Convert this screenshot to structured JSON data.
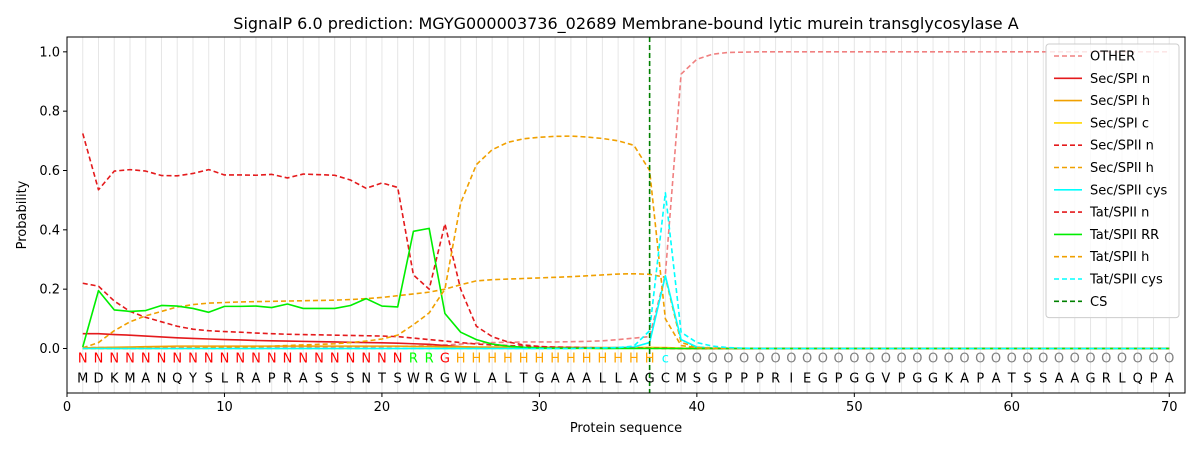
{
  "chart_data": {
    "type": "line",
    "title": "SignalP 6.0 prediction: MGYG000003736_02689 Membrane-bound lytic murein transglycosylase A",
    "xlabel": "Protein sequence",
    "ylabel": "Probability",
    "xlim": [
      0,
      71
    ],
    "ylim": [
      -0.15,
      1.05
    ],
    "xticks": [
      0,
      10,
      20,
      30,
      40,
      50,
      60,
      70
    ],
    "yticks": [
      0.0,
      0.2,
      0.4,
      0.6,
      0.8,
      1.0
    ],
    "grid": "vertical lines at each residue position",
    "legend_position": "top-right",
    "cleavage_site": 37,
    "sequence": [
      "M",
      "D",
      "K",
      "M",
      "A",
      "N",
      "Q",
      "Y",
      "S",
      "L",
      "R",
      "A",
      "P",
      "R",
      "A",
      "S",
      "S",
      "S",
      "N",
      "T",
      "S",
      "W",
      "R",
      "G",
      "W",
      "L",
      "A",
      "L",
      "T",
      "G",
      "A",
      "A",
      "A",
      "L",
      "L",
      "A",
      "G",
      "C",
      "M",
      "S",
      "G",
      "P",
      "P",
      "P",
      "R",
      "I",
      "E",
      "G",
      "P",
      "G",
      "G",
      "V",
      "P",
      "G",
      "G",
      "K",
      "A",
      "P",
      "A",
      "T",
      "S",
      "S",
      "A",
      "A",
      "G",
      "R",
      "L",
      "Q",
      "P",
      "A"
    ],
    "region_labels": [
      "N",
      "N",
      "N",
      "N",
      "N",
      "N",
      "N",
      "N",
      "N",
      "N",
      "N",
      "N",
      "N",
      "N",
      "N",
      "N",
      "N",
      "N",
      "N",
      "N",
      "N",
      "R",
      "R",
      "G",
      "H",
      "H",
      "H",
      "H",
      "H",
      "H",
      "H",
      "H",
      "H",
      "H",
      "H",
      "H",
      "H",
      "C",
      "O",
      "O",
      "O",
      "O",
      "O",
      "O",
      "O",
      "O",
      "O",
      "O",
      "O",
      "O",
      "O",
      "O",
      "O",
      "O",
      "O",
      "O",
      "O",
      "O",
      "O",
      "O",
      "O",
      "O",
      "O",
      "O",
      "O",
      "O",
      "O",
      "O",
      "O",
      "O"
    ],
    "region_colors": {
      "N": "#ff0000",
      "R": "#00ff00",
      "G": "#ff0000",
      "H": "#ffa500",
      "C": "#00ffff",
      "O": "#808080"
    },
    "series": [
      {
        "name": "OTHER",
        "color": "#f08080",
        "dash": true,
        "values": [
          0.003,
          0.003,
          0.003,
          0.003,
          0.003,
          0.003,
          0.003,
          0.003,
          0.003,
          0.003,
          0.003,
          0.003,
          0.003,
          0.004,
          0.004,
          0.004,
          0.005,
          0.005,
          0.005,
          0.006,
          0.007,
          0.008,
          0.01,
          0.012,
          0.015,
          0.018,
          0.02,
          0.021,
          0.022,
          0.022,
          0.022,
          0.023,
          0.024,
          0.026,
          0.03,
          0.035,
          0.04,
          0.25,
          0.925,
          0.975,
          0.992,
          0.998,
          0.999,
          1.0,
          1.0,
          1.0,
          1.0,
          1.0,
          1.0,
          1.0,
          1.0,
          1.0,
          1.0,
          1.0,
          1.0,
          1.0,
          1.0,
          1.0,
          1.0,
          1.0,
          1.0,
          1.0,
          1.0,
          1.0,
          1.0,
          1.0,
          1.0,
          1.0,
          1.0,
          1.0
        ]
      },
      {
        "name": "Sec/SPI n",
        "color": "#e41a1c",
        "dash": false,
        "values": [
          0.05,
          0.05,
          0.047,
          0.045,
          0.042,
          0.039,
          0.036,
          0.034,
          0.032,
          0.03,
          0.029,
          0.027,
          0.026,
          0.025,
          0.024,
          0.023,
          0.022,
          0.021,
          0.02,
          0.019,
          0.018,
          0.016,
          0.014,
          0.01,
          0.006,
          0.003,
          0.002,
          0.001,
          0.001,
          0.001,
          0.001,
          0.001,
          0.001,
          0.001,
          0.001,
          0.001,
          0.001,
          0.001,
          0.0,
          0.0,
          0.0,
          0.0,
          0.0,
          0.0,
          0.0,
          0.0,
          0.0,
          0.0,
          0.0,
          0.0,
          0.0,
          0.0,
          0.0,
          0.0,
          0.0,
          0.0,
          0.0,
          0.0,
          0.0,
          0.0,
          0.0,
          0.0,
          0.0,
          0.0,
          0.0,
          0.0,
          0.0,
          0.0,
          0.0,
          0.0
        ]
      },
      {
        "name": "Sec/SPI h",
        "color": "#f0a000",
        "dash": false,
        "values": [
          0.002,
          0.003,
          0.004,
          0.005,
          0.006,
          0.007,
          0.008,
          0.008,
          0.008,
          0.008,
          0.008,
          0.008,
          0.008,
          0.008,
          0.008,
          0.008,
          0.008,
          0.008,
          0.008,
          0.008,
          0.008,
          0.007,
          0.007,
          0.006,
          0.006,
          0.005,
          0.005,
          0.005,
          0.004,
          0.004,
          0.004,
          0.004,
          0.003,
          0.003,
          0.003,
          0.003,
          0.003,
          0.002,
          0.0,
          0.0,
          0.0,
          0.0,
          0.0,
          0.0,
          0.0,
          0.0,
          0.0,
          0.0,
          0.0,
          0.0,
          0.0,
          0.0,
          0.0,
          0.0,
          0.0,
          0.0,
          0.0,
          0.0,
          0.0,
          0.0,
          0.0,
          0.0,
          0.0,
          0.0,
          0.0,
          0.0,
          0.0,
          0.0,
          0.0,
          0.0
        ]
      },
      {
        "name": "Sec/SPI c",
        "color": "#ffd700",
        "dash": false,
        "values": [
          0.0,
          0.0,
          0.0,
          0.0,
          0.0,
          0.0,
          0.0,
          0.0,
          0.0,
          0.0,
          0.0,
          0.0,
          0.0,
          0.0,
          0.0,
          0.0,
          0.0,
          0.0,
          0.0,
          0.0,
          0.0,
          0.0,
          0.0,
          0.0,
          0.0,
          0.0,
          0.0,
          0.0,
          0.0,
          0.0,
          0.0,
          0.0,
          0.0,
          0.0,
          0.001,
          0.002,
          0.003,
          0.003,
          0.001,
          0.0,
          0.0,
          0.0,
          0.0,
          0.0,
          0.0,
          0.0,
          0.0,
          0.0,
          0.0,
          0.0,
          0.0,
          0.0,
          0.0,
          0.0,
          0.0,
          0.0,
          0.0,
          0.0,
          0.0,
          0.0,
          0.0,
          0.0,
          0.0,
          0.0,
          0.0,
          0.0,
          0.0,
          0.0,
          0.0,
          0.0
        ]
      },
      {
        "name": "Sec/SPII n",
        "color": "#e41a1c",
        "dash": true,
        "values": [
          0.22,
          0.21,
          0.16,
          0.125,
          0.105,
          0.09,
          0.075,
          0.065,
          0.06,
          0.057,
          0.055,
          0.052,
          0.05,
          0.048,
          0.047,
          0.046,
          0.045,
          0.044,
          0.043,
          0.042,
          0.04,
          0.035,
          0.03,
          0.025,
          0.02,
          0.015,
          0.012,
          0.01,
          0.008,
          0.006,
          0.005,
          0.004,
          0.003,
          0.002,
          0.002,
          0.001,
          0.001,
          0.001,
          0.0,
          0.0,
          0.0,
          0.0,
          0.0,
          0.0,
          0.0,
          0.0,
          0.0,
          0.0,
          0.0,
          0.0,
          0.0,
          0.0,
          0.0,
          0.0,
          0.0,
          0.0,
          0.0,
          0.0,
          0.0,
          0.0,
          0.0,
          0.0,
          0.0,
          0.0,
          0.0,
          0.0,
          0.0,
          0.0,
          0.0,
          0.0
        ]
      },
      {
        "name": "Sec/SPII h",
        "color": "#f0a000",
        "dash": true,
        "values": [
          0.002,
          0.02,
          0.06,
          0.09,
          0.11,
          0.125,
          0.14,
          0.148,
          0.153,
          0.155,
          0.157,
          0.158,
          0.159,
          0.16,
          0.161,
          0.162,
          0.163,
          0.165,
          0.168,
          0.172,
          0.178,
          0.184,
          0.19,
          0.2,
          0.215,
          0.228,
          0.232,
          0.234,
          0.236,
          0.238,
          0.24,
          0.242,
          0.245,
          0.248,
          0.251,
          0.252,
          0.25,
          0.24,
          0.02,
          0.005,
          0.002,
          0.001,
          0.0,
          0.0,
          0.0,
          0.0,
          0.0,
          0.0,
          0.0,
          0.0,
          0.0,
          0.0,
          0.0,
          0.0,
          0.0,
          0.0,
          0.0,
          0.0,
          0.0,
          0.0,
          0.0,
          0.0,
          0.0,
          0.0,
          0.0,
          0.0,
          0.0,
          0.0,
          0.0,
          0.0
        ]
      },
      {
        "name": "Sec/SPII cys",
        "color": "#00ffff",
        "dash": false,
        "values": [
          0.0,
          0.0,
          0.0,
          0.0,
          0.0,
          0.0,
          0.0,
          0.0,
          0.0,
          0.0,
          0.0,
          0.0,
          0.0,
          0.0,
          0.0,
          0.0,
          0.0,
          0.0,
          0.0,
          0.0,
          0.0,
          0.0,
          0.0,
          0.0,
          0.0,
          0.0,
          0.0,
          0.0,
          0.0,
          0.0,
          0.0,
          0.0,
          0.001,
          0.002,
          0.003,
          0.005,
          0.02,
          0.245,
          0.03,
          0.005,
          0.001,
          0.0,
          0.0,
          0.0,
          0.0,
          0.0,
          0.0,
          0.0,
          0.0,
          0.0,
          0.0,
          0.0,
          0.0,
          0.0,
          0.0,
          0.0,
          0.0,
          0.0,
          0.0,
          0.0,
          0.0,
          0.0,
          0.0,
          0.0,
          0.0,
          0.0,
          0.0,
          0.0,
          0.0,
          0.0
        ]
      },
      {
        "name": "Tat/SPII n",
        "color": "#e41a1c",
        "dash": true,
        "values": [
          0.725,
          0.535,
          0.598,
          0.603,
          0.598,
          0.583,
          0.582,
          0.59,
          0.603,
          0.585,
          0.585,
          0.584,
          0.587,
          0.575,
          0.588,
          0.586,
          0.584,
          0.568,
          0.54,
          0.558,
          0.543,
          0.248,
          0.2,
          0.42,
          0.2,
          0.075,
          0.04,
          0.022,
          0.012,
          0.007,
          0.004,
          0.003,
          0.002,
          0.001,
          0.001,
          0.001,
          0.001,
          0.0,
          0.0,
          0.0,
          0.0,
          0.0,
          0.0,
          0.0,
          0.0,
          0.0,
          0.0,
          0.0,
          0.0,
          0.0,
          0.0,
          0.0,
          0.0,
          0.0,
          0.0,
          0.0,
          0.0,
          0.0,
          0.0,
          0.0,
          0.0,
          0.0,
          0.0,
          0.0,
          0.0,
          0.0,
          0.0,
          0.0,
          0.0,
          0.0
        ]
      },
      {
        "name": "Tat/SPII RR",
        "color": "#00ee00",
        "dash": false,
        "values": [
          0.005,
          0.195,
          0.13,
          0.125,
          0.128,
          0.145,
          0.143,
          0.135,
          0.122,
          0.142,
          0.142,
          0.143,
          0.138,
          0.15,
          0.135,
          0.135,
          0.135,
          0.145,
          0.168,
          0.143,
          0.14,
          0.395,
          0.405,
          0.118,
          0.055,
          0.03,
          0.015,
          0.008,
          0.004,
          0.002,
          0.001,
          0.001,
          0.001,
          0.0,
          0.0,
          0.0,
          0.0,
          0.0,
          0.0,
          0.0,
          0.0,
          0.0,
          0.0,
          0.0,
          0.0,
          0.0,
          0.0,
          0.0,
          0.0,
          0.0,
          0.0,
          0.0,
          0.0,
          0.0,
          0.0,
          0.0,
          0.0,
          0.0,
          0.0,
          0.0,
          0.0,
          0.0,
          0.0,
          0.0,
          0.0,
          0.0,
          0.0,
          0.0,
          0.0,
          0.0
        ]
      },
      {
        "name": "Tat/SPII h",
        "color": "#f0a000",
        "dash": true,
        "values": [
          0.0,
          0.0,
          0.0,
          0.0,
          0.0,
          0.001,
          0.001,
          0.002,
          0.003,
          0.004,
          0.005,
          0.006,
          0.008,
          0.01,
          0.012,
          0.014,
          0.016,
          0.02,
          0.025,
          0.032,
          0.045,
          0.08,
          0.12,
          0.2,
          0.49,
          0.62,
          0.67,
          0.695,
          0.707,
          0.712,
          0.715,
          0.716,
          0.713,
          0.708,
          0.7,
          0.685,
          0.6,
          0.1,
          0.01,
          0.003,
          0.001,
          0.0,
          0.0,
          0.0,
          0.0,
          0.0,
          0.0,
          0.0,
          0.0,
          0.0,
          0.0,
          0.0,
          0.0,
          0.0,
          0.0,
          0.0,
          0.0,
          0.0,
          0.0,
          0.0,
          0.0,
          0.0,
          0.0,
          0.0,
          0.0,
          0.0,
          0.0,
          0.0,
          0.0,
          0.0
        ]
      },
      {
        "name": "Tat/SPII cys",
        "color": "#00ffff",
        "dash": true,
        "values": [
          0.0,
          0.0,
          0.0,
          0.0,
          0.0,
          0.0,
          0.0,
          0.0,
          0.0,
          0.0,
          0.0,
          0.0,
          0.0,
          0.0,
          0.0,
          0.0,
          0.0,
          0.0,
          0.0,
          0.0,
          0.0,
          0.0,
          0.0,
          0.0,
          0.0,
          0.0,
          0.0,
          0.0,
          0.0,
          0.0,
          0.0,
          0.0,
          0.001,
          0.002,
          0.003,
          0.008,
          0.06,
          0.525,
          0.055,
          0.02,
          0.008,
          0.003,
          0.001,
          0.0,
          0.0,
          0.0,
          0.0,
          0.0,
          0.0,
          0.0,
          0.0,
          0.0,
          0.0,
          0.0,
          0.0,
          0.0,
          0.0,
          0.0,
          0.0,
          0.0,
          0.0,
          0.0,
          0.0,
          0.0,
          0.0,
          0.0,
          0.0,
          0.0,
          0.0,
          0.0
        ]
      }
    ],
    "cs_legend": {
      "name": "CS",
      "color": "#008000"
    }
  }
}
